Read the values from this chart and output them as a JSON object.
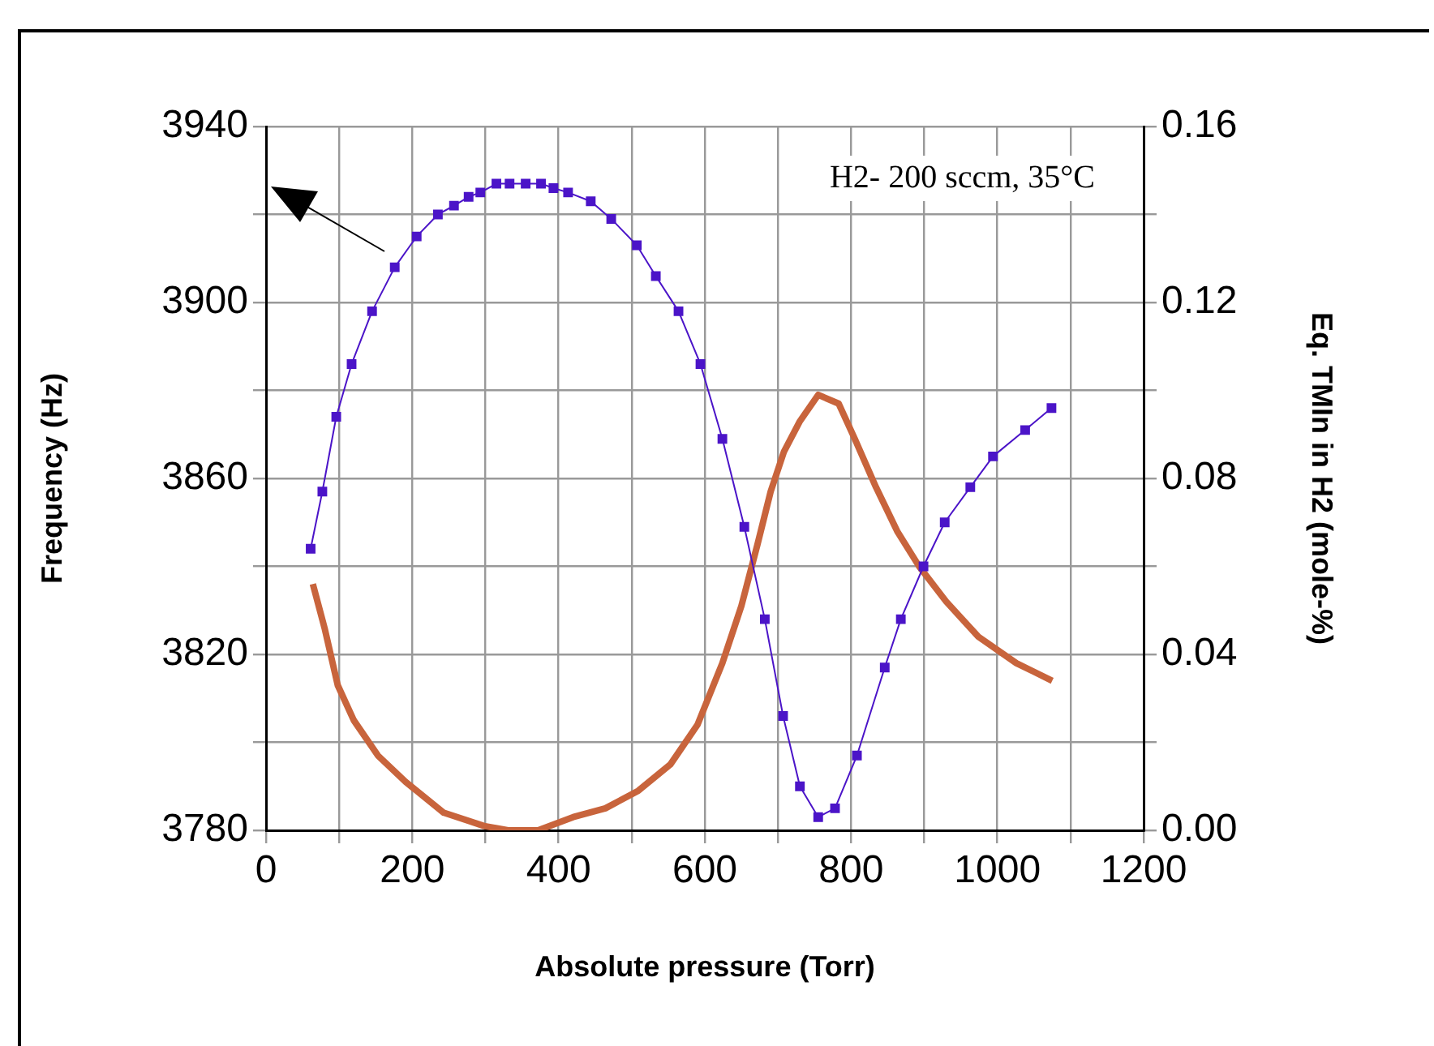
{
  "chart_data": {
    "type": "line",
    "xlabel": "Absolute pressure (Torr)",
    "ylabel": "Frequency (Hz)",
    "y2label": "Eq. TMIn in H2 (mole-%)",
    "annotations": [
      "H2- 200 sccm, 35°C"
    ],
    "xlim": [
      0,
      1200
    ],
    "xticks": [
      0,
      {
        "value": 100,
        "label": null
      },
      200,
      {
        "value": 300,
        "label": null
      },
      400,
      {
        "value": 500,
        "label": null
      },
      600,
      {
        "value": 700,
        "label": null
      },
      800,
      {
        "value": 900,
        "label": null
      },
      1000,
      {
        "value": 1100,
        "label": null
      },
      1200
    ],
    "ylim": [
      3780,
      3940
    ],
    "yticks": [
      3780,
      {
        "value": 3800,
        "label": null
      },
      3820,
      {
        "value": 3840,
        "label": null
      },
      3860,
      {
        "value": 3880,
        "label": null
      },
      3900,
      {
        "value": 3920,
        "label": null
      },
      3940
    ],
    "y2lim": [
      0,
      0.16
    ],
    "y2ticks": [
      {
        "value": 0,
        "label": "0.00"
      },
      {
        "value": 0.02,
        "label": null
      },
      {
        "value": 0.04,
        "label": "0.04"
      },
      {
        "value": 0.06,
        "label": null
      },
      {
        "value": 0.08,
        "label": "0.08"
      },
      {
        "value": 0.1,
        "label": null
      },
      {
        "value": 0.12,
        "label": "0.12"
      },
      {
        "value": 0.14,
        "label": null
      },
      {
        "value": 0.16,
        "label": "0.16"
      }
    ],
    "grid": true,
    "legend": false,
    "series": [
      {
        "color": "#4b14c8",
        "marker": "square",
        "x": [
          61,
          77,
          96,
          117,
          145,
          176,
          206,
          235,
          257,
          277,
          293,
          315,
          333,
          355,
          376,
          393,
          413,
          444,
          472,
          507,
          533,
          564,
          594,
          624,
          654,
          682,
          707,
          730,
          755,
          778,
          808,
          846,
          868,
          899,
          928,
          963,
          994,
          1038,
          1074
        ],
        "values": [
          3844,
          3857,
          3874,
          3886,
          3898,
          3908,
          3915,
          3920,
          3922,
          3924,
          3925,
          3927,
          3927,
          3927,
          3927,
          3926,
          3925,
          3923,
          3919,
          3913,
          3906,
          3898,
          3886,
          3869,
          3849,
          3828,
          3806,
          3790,
          3783,
          3785,
          3797,
          3817,
          3828,
          3840,
          3850,
          3858,
          3865,
          3871,
          3876
        ]
      },
      {
        "color": "#c8643c",
        "marker": "none",
        "axis": "y2",
        "x": [
          64,
          80,
          98,
          120,
          153,
          191,
          243,
          298,
          331,
          372,
          420,
          464,
          509,
          553,
          590,
          624,
          650,
          672,
          690,
          708,
          730,
          755,
          783,
          805,
          834,
          863,
          893,
          930,
          974,
          1026,
          1075
        ],
        "values": [
          0.056,
          0.046,
          0.033,
          0.025,
          0.017,
          0.011,
          0.004,
          0.001,
          0,
          0,
          0.003,
          0.005,
          0.009,
          0.015,
          0.024,
          0.038,
          0.051,
          0.065,
          0.077,
          0.086,
          0.093,
          0.099,
          0.097,
          0.089,
          0.078,
          0.068,
          0.06,
          0.052,
          0.044,
          0.038,
          0.034
        ]
      }
    ]
  }
}
